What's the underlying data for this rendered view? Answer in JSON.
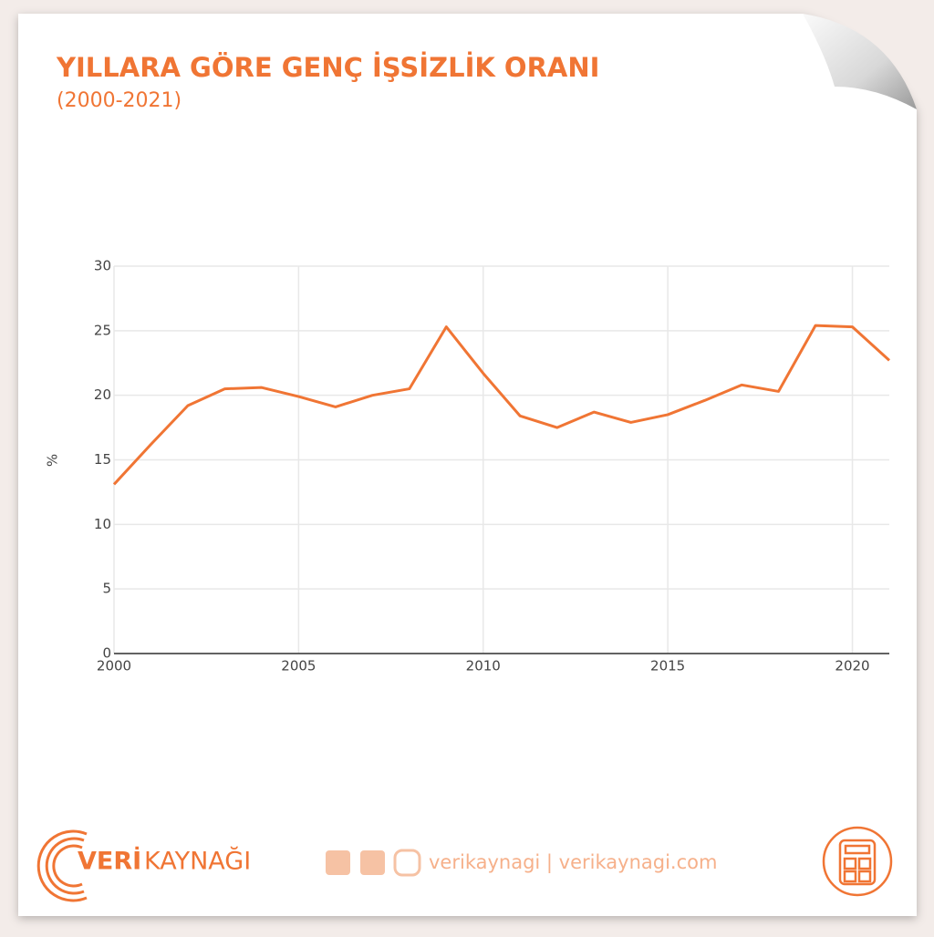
{
  "chart_data": {
    "type": "line",
    "title": "YILLARA GÖRE GENÇ İŞSİZLİK ORANI",
    "subtitle": "(2000-2021)",
    "y_label": "%",
    "x": [
      2000,
      2001,
      2002,
      2003,
      2004,
      2005,
      2006,
      2007,
      2008,
      2009,
      2010,
      2011,
      2012,
      2013,
      2014,
      2015,
      2016,
      2017,
      2018,
      2019,
      2020,
      2021
    ],
    "values": [
      13.1,
      16.2,
      19.2,
      20.5,
      20.6,
      19.9,
      19.1,
      20.0,
      20.5,
      25.3,
      21.7,
      18.4,
      17.5,
      18.7,
      17.9,
      18.5,
      19.6,
      20.8,
      20.3,
      25.4,
      25.3,
      22.7
    ],
    "color": "#f07534",
    "xlim": [
      2000,
      2021
    ],
    "xticks": [
      2000,
      2005,
      2010,
      2015,
      2020
    ],
    "ylim": [
      0,
      30
    ],
    "yticks": [
      0,
      5,
      10,
      15,
      20,
      25,
      30
    ],
    "grid": true
  },
  "footer": {
    "brand_a": "VERİ",
    "brand_b": "KAYNAĞI",
    "social": "verikaynagi | verikaynagi.com"
  }
}
